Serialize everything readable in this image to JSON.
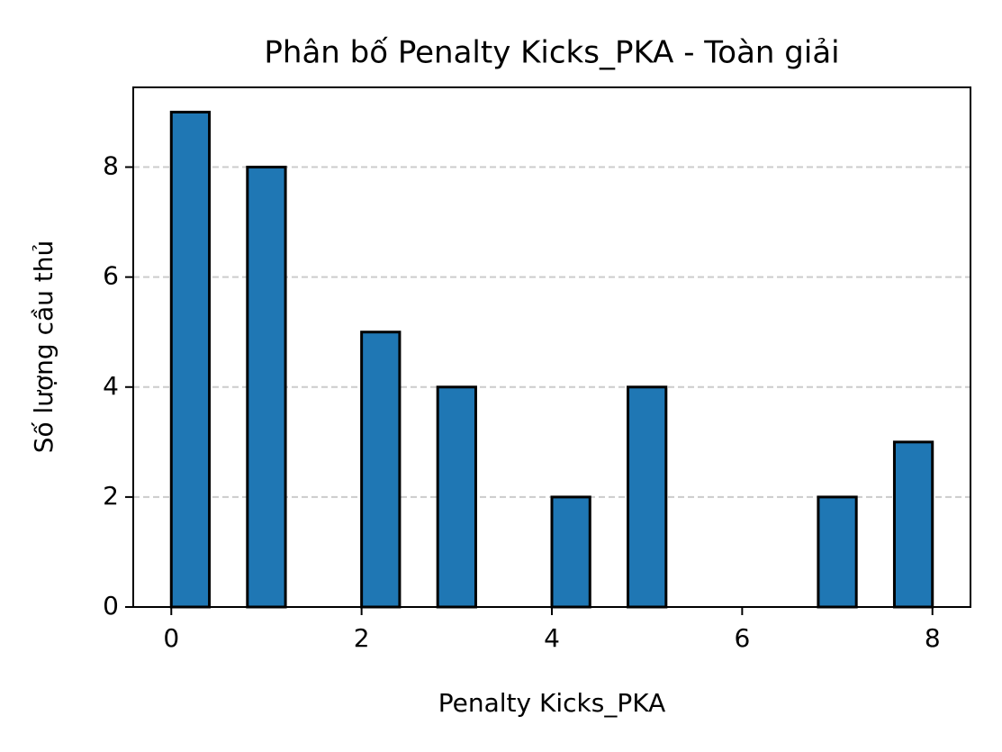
{
  "chart_data": {
    "type": "histogram",
    "title": "Phân bố Penalty Kicks_PKA - Toàn giải",
    "xlabel": "Penalty Kicks_PKA",
    "ylabel": "Số lượng cầu thủ",
    "bins": [
      0,
      0.4,
      0.8,
      1.2,
      1.6,
      2.0,
      2.4,
      2.8,
      3.2,
      3.6,
      4.0,
      4.4,
      4.8,
      5.2,
      5.6,
      6.0,
      6.4,
      6.8,
      7.2,
      7.6,
      8.0
    ],
    "values": [
      9,
      0,
      8,
      0,
      0,
      5,
      0,
      4,
      0,
      0,
      2,
      0,
      4,
      0,
      0,
      0,
      0,
      2,
      0,
      3
    ],
    "color": "#1f77b4",
    "edgecolor": "#000000",
    "xlim": [
      -0.4,
      8.4
    ],
    "ylim": [
      0,
      9.45
    ],
    "xticks": [
      0,
      2,
      4,
      6,
      8
    ],
    "yticks": [
      0,
      2,
      4,
      6,
      8
    ],
    "grid": "y"
  }
}
